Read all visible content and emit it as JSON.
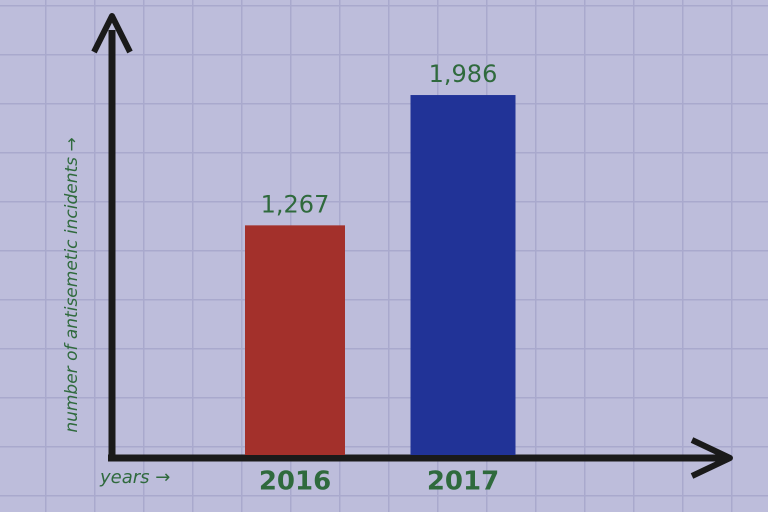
{
  "chart_data": {
    "type": "bar",
    "y_label": "number of antisemetic incidents →",
    "x_label": "years →",
    "categories": [
      "2016",
      "2017"
    ],
    "values": [
      1267,
      1986
    ],
    "value_labels": [
      "1,267",
      "1,986"
    ],
    "colors": [
      "#a3302b",
      "#213397"
    ],
    "ylim": [
      0,
      2400
    ]
  }
}
